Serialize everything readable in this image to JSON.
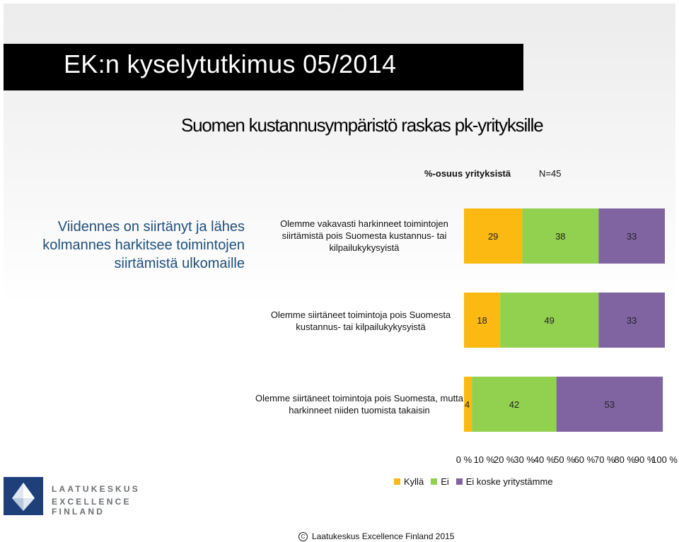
{
  "slide": {
    "title": "EK:n kyselytutkimus 05/2014",
    "subtitle": "Suomen kustannusympäristö raskas pk-yrityksille",
    "share_label": "%-osuus yrityksistä",
    "n_label": "N=45",
    "callout": "Viidennes on siirtänyt ja lähes kolmannes harkitsee toimintojen siirtämistä ulkomaille",
    "footer": "Laatukeskus Excellence Finland  2015",
    "logo": {
      "line1": "LAATUKESKUS",
      "line2": "EXCELLENCE FINLAND"
    }
  },
  "chart_data": {
    "type": "bar",
    "orientation": "horizontal",
    "stacked": true,
    "categories": [
      "Olemme vakavasti harkinneet toimintojen siirtämistä pois Suomesta kustannus- tai kilpailukykysyistä",
      "Olemme siirtäneet toimintoja pois Suomesta kustannus- tai kilpailukykysyistä",
      "Olemme siirtäneet toimintoja pois Suomesta, mutta harkinneet niiden tuomista takaisin"
    ],
    "series": [
      {
        "name": "Kyllä",
        "values": [
          29,
          18,
          4
        ],
        "color": "#fbb911"
      },
      {
        "name": "Ei",
        "values": [
          38,
          49,
          42
        ],
        "color": "#92d050"
      },
      {
        "name": "Ei koske yritystämme",
        "values": [
          33,
          33,
          53
        ],
        "color": "#8064a2"
      }
    ],
    "xticks": [
      "0 %",
      "10 %",
      "20 %",
      "30 %",
      "40 %",
      "50 %",
      "60 %",
      "70 %",
      "80 %",
      "90 %",
      "100 %"
    ],
    "xlim": [
      0,
      100
    ],
    "legend_position": "bottom",
    "grid": false
  }
}
